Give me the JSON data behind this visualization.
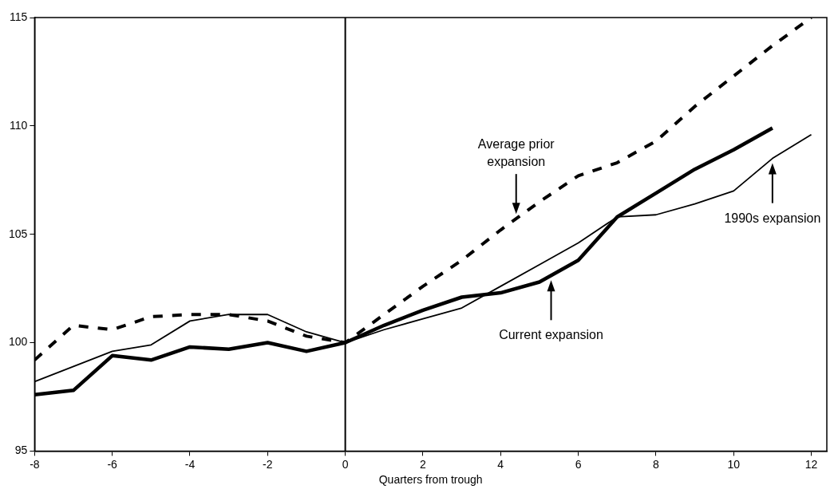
{
  "chart_data": {
    "type": "line",
    "xlabel": "Quarters from trough",
    "x": [
      -8,
      -7,
      -6,
      -5,
      -4,
      -3,
      -2,
      -1,
      0,
      1,
      2,
      3,
      4,
      5,
      6,
      7,
      8,
      9,
      10,
      11,
      12
    ],
    "series": [
      {
        "name": "Current expansion",
        "color": "#000000",
        "line_style": "solid",
        "values": [
          97.6,
          97.8,
          99.4,
          99.2,
          99.8,
          99.7,
          100.0,
          99.6,
          100,
          100.8,
          101.5,
          102.1,
          102.3,
          102.8,
          103.8,
          105.8,
          106.9,
          108.0,
          108.9,
          109.9,
          null
        ]
      },
      {
        "name": "1990s expansion",
        "color": "#000000",
        "line_style": "solid",
        "values": [
          98.2,
          98.9,
          99.6,
          99.9,
          101.0,
          101.3,
          101.3,
          100.5,
          100,
          100.6,
          101.1,
          101.6,
          102.6,
          103.6,
          104.6,
          105.8,
          105.9,
          106.4,
          107.0,
          108.5,
          109.6
        ]
      },
      {
        "name": "Average prior expansion",
        "color": "#000000",
        "line_style": "dashed",
        "values": [
          99.2,
          100.8,
          100.6,
          101.2,
          101.3,
          101.3,
          101.0,
          100.3,
          100,
          101.3,
          102.6,
          103.8,
          105.2,
          106.5,
          107.7,
          108.3,
          109.3,
          110.9,
          112.3,
          113.7,
          115
        ]
      }
    ],
    "xlim": [
      -8,
      12.4
    ],
    "xticks": [
      -8,
      -6,
      -4,
      -2,
      0,
      2,
      4,
      6,
      8,
      10,
      12
    ],
    "ylim": [
      95,
      115
    ],
    "yticks": [
      95,
      100,
      105,
      110,
      115
    ],
    "grid": false,
    "legend": false,
    "marker": "none",
    "ref_lines": [
      {
        "axis": "x",
        "value": 0,
        "color": "#000000"
      }
    ]
  }
}
